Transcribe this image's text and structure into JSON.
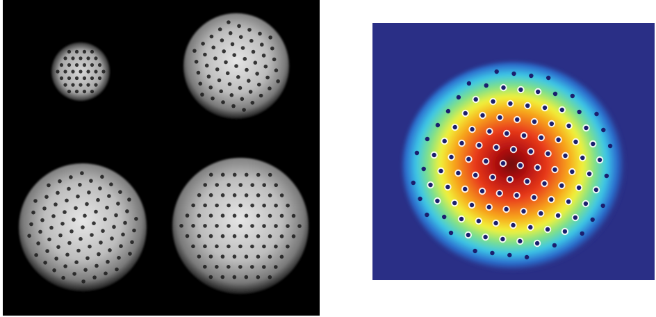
{
  "figure": {
    "left_panel": {
      "kind": "grayscale-vortex-lattice-images",
      "background_color": "#000000",
      "condensate_count": 4,
      "vortex_color": "#1a1a1a"
    },
    "right_panel": {
      "kind": "false-color-density-with-vortex-lattice",
      "background_color": "#2a2f86",
      "colormap": [
        "#2a2f86",
        "#2c6fd0",
        "#3cc7e8",
        "#7ee08a",
        "#f2f23a",
        "#f7a21a",
        "#e8391a",
        "#b01010",
        "#6e0a0a"
      ],
      "vortex_core_color": "#1b1f6e",
      "vortex_ring_color": "#ffffff"
    }
  }
}
